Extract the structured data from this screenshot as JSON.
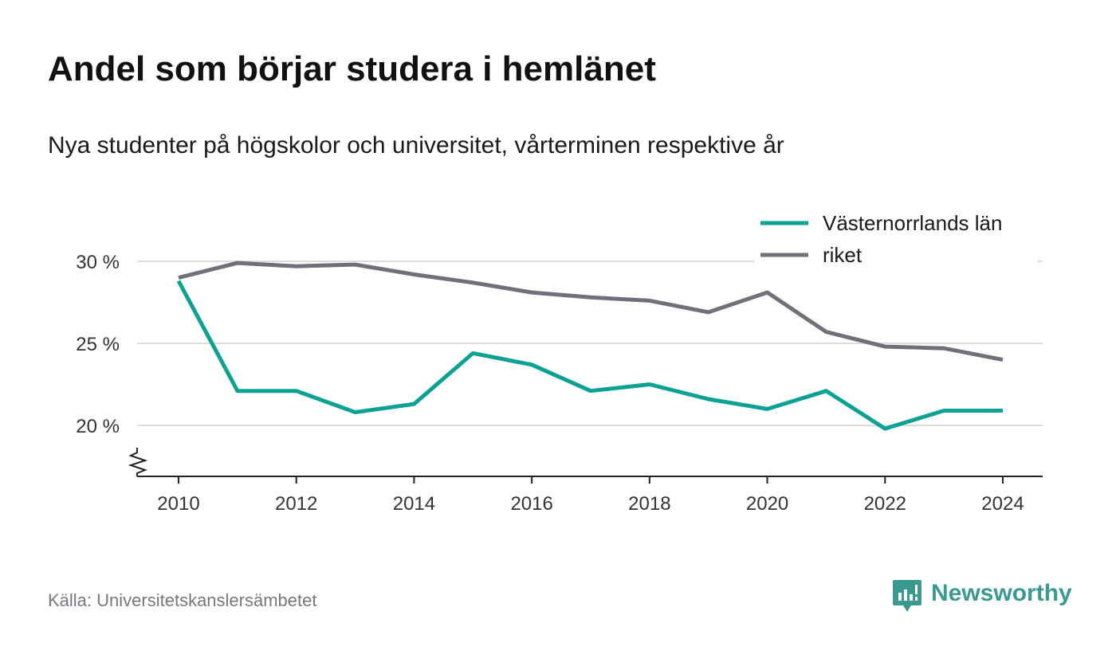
{
  "title": "Andel som börjar studera i hemlänet",
  "subtitle": "Nya studenter på högskolor och universitet, vårterminen respektive år",
  "source": "Källa: Universitetskanslersämbetet",
  "brand": {
    "name": "Newsworthy",
    "icon": "newsworthy-logo-icon",
    "color": "#3a9a92"
  },
  "chart_data": {
    "type": "line",
    "x": [
      2010,
      2011,
      2012,
      2013,
      2014,
      2015,
      2016,
      2017,
      2018,
      2019,
      2020,
      2021,
      2022,
      2023,
      2024
    ],
    "series": [
      {
        "name": "Västernorrlands län",
        "color": "#0ca293",
        "values": [
          28.8,
          22.1,
          22.1,
          20.8,
          21.3,
          24.4,
          23.7,
          22.1,
          22.5,
          21.6,
          21.0,
          22.1,
          19.8,
          20.9,
          20.9
        ]
      },
      {
        "name": "riket",
        "color": "#707078",
        "values": [
          29.0,
          29.9,
          29.7,
          29.8,
          29.2,
          28.7,
          28.1,
          27.8,
          27.6,
          26.9,
          28.1,
          25.7,
          24.8,
          24.7,
          24.0
        ]
      }
    ],
    "ylim": [
      17,
      30
    ],
    "yticks": [
      20,
      25,
      30
    ],
    "ytick_labels": [
      "20 %",
      "25 %",
      "30 %"
    ],
    "xticks": [
      2010,
      2012,
      2014,
      2016,
      2018,
      2020,
      2022,
      2024
    ],
    "xtick_labels": [
      "2010",
      "2012",
      "2014",
      "2016",
      "2018",
      "2020",
      "2022",
      "2024"
    ],
    "xlabel": "",
    "ylabel": "",
    "grid": true,
    "y_axis_break": true,
    "legend_position": "top-right"
  }
}
